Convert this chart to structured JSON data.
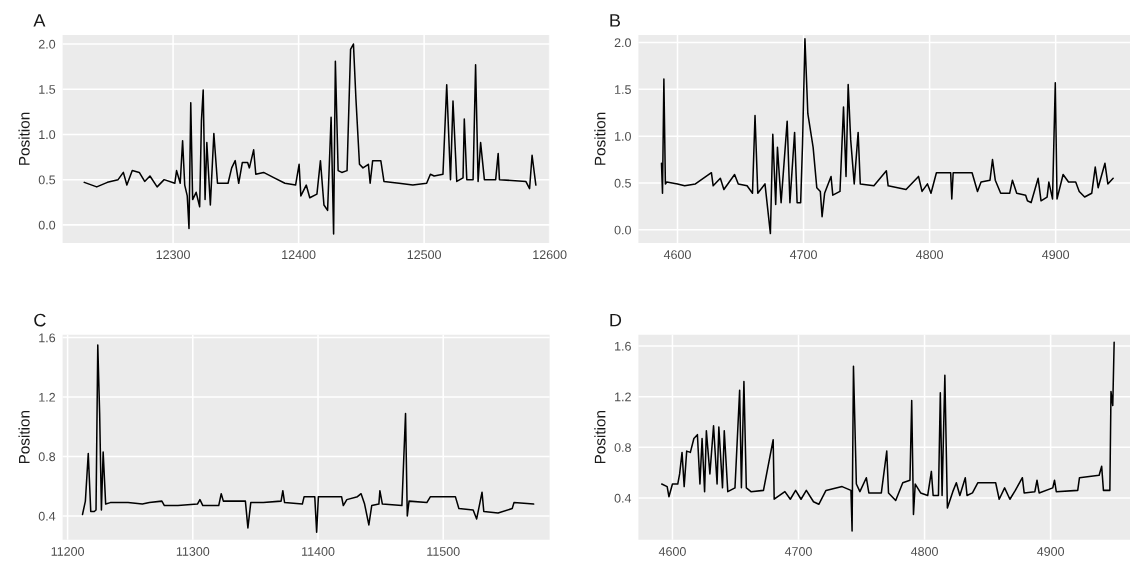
{
  "chart_data": [
    {
      "type": "line",
      "title": "A",
      "ylabel": "Position",
      "grid": true,
      "xlim": [
        12212,
        12600
      ],
      "ylim": [
        -0.2,
        2.1
      ],
      "xticks": [
        12300,
        12400,
        12500,
        12600
      ],
      "yticks": [
        {
          "value": 0,
          "label": "0.0"
        },
        {
          "value": 0.5,
          "label": "0.5"
        },
        {
          "value": 1,
          "label": "1.0"
        },
        {
          "value": 1.5,
          "label": "1.5"
        },
        {
          "value": 2,
          "label": "2.0"
        }
      ],
      "series": [
        {
          "color": "#000000",
          "x": [
            12229.3,
            12239.2,
            12247.7,
            12256.2,
            12260.4,
            12263.2,
            12267.5,
            12273.1,
            12277.4,
            12281.6,
            12287.3,
            12292.9,
            12301.4,
            12302.8,
            12305.7,
            12307.6,
            12309.3,
            12311.3,
            12312.7,
            12314.1,
            12315.6,
            12318.4,
            12321.2,
            12322.6,
            12324,
            12325.5,
            12326.9,
            12329.7,
            12332.5,
            12335.4,
            12343.8,
            12346.7,
            12349.5,
            12352.3,
            12355.2,
            12359.4,
            12360.8,
            12364.2,
            12365.9,
            12372.1,
            12380.6,
            12389.1,
            12397.6,
            12400.4,
            12401.8,
            12406.1,
            12408.9,
            12414.6,
            12417.4,
            12420.2,
            12423.1,
            12425.9,
            12427.9,
            12429.3,
            12431.5,
            12434.4,
            12438.6,
            12441.4,
            12443.7,
            12445.7,
            12448.5,
            12451.3,
            12455.6,
            12457,
            12459,
            12465.5,
            12468,
            12480,
            12491,
            12502,
            12505,
            12508,
            12515,
            12518,
            12521,
            12523,
            12526,
            12531,
            12532,
            12534,
            12539,
            12541,
            12543,
            12545,
            12548,
            12557,
            12559,
            12560,
            12581,
            12584,
            12586,
            12589
          ],
          "values": [
            0.47,
            0.42,
            0.47,
            0.5,
            0.58,
            0.44,
            0.6,
            0.58,
            0.48,
            0.54,
            0.42,
            0.5,
            0.46,
            0.6,
            0.46,
            0.93,
            0.44,
            0.32,
            -0.04,
            1.35,
            0.28,
            0.36,
            0.2,
            1.15,
            1.49,
            0.28,
            0.91,
            0.22,
            1.01,
            0.46,
            0.46,
            0.63,
            0.71,
            0.46,
            0.69,
            0.69,
            0.63,
            0.83,
            0.56,
            0.58,
            0.52,
            0.46,
            0.44,
            0.67,
            0.32,
            0.44,
            0.3,
            0.34,
            0.71,
            0.22,
            0.16,
            1.19,
            -0.1,
            1.81,
            0.6,
            0.58,
            0.6,
            1.94,
            2.0,
            1.39,
            0.67,
            0.63,
            0.67,
            0.46,
            0.71,
            0.71,
            0.48,
            0.46,
            0.44,
            0.46,
            0.56,
            0.54,
            0.56,
            1.55,
            0.5,
            1.37,
            0.48,
            0.52,
            1.17,
            0.5,
            0.5,
            1.77,
            0.48,
            0.91,
            0.5,
            0.5,
            0.79,
            0.5,
            0.48,
            0.4,
            0.77,
            0.44
          ]
        }
      ]
    },
    {
      "type": "line",
      "title": "B",
      "ylabel": "Position",
      "grid": true,
      "xlim": [
        4569,
        4959
      ],
      "ylim": [
        -0.14,
        2.08
      ],
      "xticks": [
        4600,
        4700,
        4800,
        4900
      ],
      "yticks": [
        {
          "value": 0,
          "label": "0.0"
        },
        {
          "value": 0.5,
          "label": "0.5"
        },
        {
          "value": 1,
          "label": "1.0"
        },
        {
          "value": 1.5,
          "label": "1.5"
        },
        {
          "value": 2,
          "label": "2.0"
        }
      ],
      "series": [
        {
          "color": "#000000",
          "x": [
            4587.3,
            4588.1,
            4589.2,
            4590.4,
            4591.5,
            4600,
            4605.7,
            4614.2,
            4626.9,
            4628.3,
            4634,
            4636.8,
            4645.3,
            4648.2,
            4655.2,
            4659.5,
            4661.5,
            4663.7,
            4669.4,
            4673.7,
            4675.6,
            4677.9,
            4679.3,
            4682.2,
            4687,
            4689.2,
            4692.9,
            4694.9,
            4697.7,
            4699.2,
            4701.1,
            4703.4,
            4707.6,
            4710.5,
            4713.3,
            4714.7,
            4716.7,
            4721.8,
            4723.2,
            4728.9,
            4731.7,
            4733.7,
            4735.4,
            4737.4,
            4740.2,
            4743.3,
            4745,
            4755.8,
            4765.7,
            4767.1,
            4781.3,
            4791.2,
            4794,
            4798.3,
            4801.1,
            4805.4,
            4816.7,
            4817.6,
            4818.7,
            4833.7,
            4838,
            4840.8,
            4847.9,
            4849.9,
            4852.1,
            4856.4,
            4863.5,
            4865.7,
            4869.1,
            4876.2,
            4877.6,
            4880.5,
            4886.1,
            4888.4,
            4893.2,
            4894.6,
            4897.5,
            4899.7,
            4901.1,
            4905.9,
            4910.2,
            4915.9,
            4918.7,
            4923,
            4928.6,
            4931.4,
            4933.7,
            4939.1,
            4941.4,
            4945.6
          ],
          "values": [
            0.71,
            0.39,
            1.61,
            0.49,
            0.51,
            0.49,
            0.47,
            0.49,
            0.61,
            0.47,
            0.55,
            0.43,
            0.59,
            0.49,
            0.47,
            0.39,
            1.22,
            0.39,
            0.49,
            -0.04,
            1.02,
            0.27,
            0.88,
            0.29,
            1.16,
            0.29,
            1.04,
            0.29,
            0.29,
            0.92,
            2.04,
            1.24,
            0.88,
            0.45,
            0.41,
            0.14,
            0.39,
            0.57,
            0.37,
            0.41,
            1.31,
            0.57,
            1.55,
            0.96,
            0.49,
            1.04,
            0.49,
            0.47,
            0.63,
            0.47,
            0.43,
            0.57,
            0.41,
            0.49,
            0.39,
            0.61,
            0.61,
            0.33,
            0.61,
            0.61,
            0.41,
            0.51,
            0.53,
            0.75,
            0.53,
            0.39,
            0.39,
            0.53,
            0.39,
            0.37,
            0.31,
            0.29,
            0.55,
            0.31,
            0.35,
            0.51,
            0.33,
            1.57,
            0.33,
            0.59,
            0.51,
            0.51,
            0.41,
            0.35,
            0.39,
            0.67,
            0.45,
            0.71,
            0.49,
            0.55
          ]
        }
      ]
    },
    {
      "type": "line",
      "title": "C",
      "ylabel": "Position",
      "grid": true,
      "xlim": [
        11196,
        11585
      ],
      "ylim": [
        0.24,
        1.62
      ],
      "xticks": [
        11200,
        11300,
        11400,
        11500
      ],
      "yticks": [
        0.4,
        0.8,
        1.2,
        1.6
      ],
      "series": [
        {
          "color": "#000000",
          "x": [
            11211.9,
            11214.2,
            11216.5,
            11218.5,
            11221.3,
            11222.7,
            11224.1,
            11225.6,
            11227,
            11228.4,
            11230.4,
            11234.1,
            11248.3,
            11259.7,
            11265.3,
            11275.3,
            11277.3,
            11288.1,
            11303.7,
            11305.7,
            11308,
            11320.7,
            11322.7,
            11324.4,
            11342,
            11344,
            11346.3,
            11356.3,
            11370.5,
            11371.9,
            11373.3,
            11387.5,
            11388.9,
            11397.4,
            11398.9,
            11400.3,
            11418.8,
            11420.2,
            11423,
            11431.5,
            11434.4,
            11437.2,
            11440.6,
            11442.9,
            11448.6,
            11449.4,
            11451.4,
            11467,
            11469.9,
            11471.3,
            11472.7,
            11486.9,
            11489.8,
            11509.7,
            11512.5,
            11523.9,
            11526.7,
            11531,
            11532.4,
            11543.8,
            11555.1,
            11556.5,
            11572.2
          ],
          "values": [
            0.41,
            0.5,
            0.82,
            0.43,
            0.43,
            0.44,
            1.55,
            1.09,
            0.44,
            0.83,
            0.48,
            0.49,
            0.49,
            0.48,
            0.49,
            0.5,
            0.47,
            0.47,
            0.48,
            0.51,
            0.47,
            0.47,
            0.55,
            0.5,
            0.5,
            0.32,
            0.49,
            0.49,
            0.5,
            0.57,
            0.49,
            0.48,
            0.53,
            0.53,
            0.29,
            0.53,
            0.53,
            0.47,
            0.51,
            0.53,
            0.55,
            0.48,
            0.34,
            0.47,
            0.48,
            0.57,
            0.48,
            0.47,
            1.09,
            0.4,
            0.5,
            0.49,
            0.53,
            0.53,
            0.45,
            0.44,
            0.38,
            0.56,
            0.43,
            0.42,
            0.45,
            0.49,
            0.48
          ]
        }
      ]
    },
    {
      "type": "line",
      "title": "D",
      "ylabel": "Position",
      "grid": true,
      "xlim": [
        4573,
        4963
      ],
      "ylim": [
        0.07,
        1.69
      ],
      "xticks": [
        4600,
        4700,
        4800,
        4900
      ],
      "yticks": [
        0.4,
        0.8,
        1.2,
        1.6
      ],
      "series": [
        {
          "color": "#000000",
          "x": [
            4591.5,
            4595.8,
            4597.2,
            4600,
            4604.2,
            4605.7,
            4607.6,
            4609.3,
            4611.3,
            4614.2,
            4617,
            4619.8,
            4621.8,
            4623.5,
            4625.5,
            4626.9,
            4629.7,
            4632.6,
            4635.4,
            4636.8,
            4639.7,
            4641.1,
            4643.9,
            4649.6,
            4653.3,
            4654.7,
            4656.7,
            4658.6,
            4662.3,
            4672.2,
            4679.9,
            4680.7,
            4689.2,
            4693.5,
            4697.7,
            4702,
            4706.2,
            4711.9,
            4716.1,
            4721.8,
            4734.6,
            4741.6,
            4742.5,
            4743.6,
            4745.9,
            4748.7,
            4753.8,
            4755.8,
            4765.7,
            4770,
            4771.4,
            4777.1,
            4782.7,
            4788.4,
            4789.8,
            4791.2,
            4792.6,
            4796.9,
            4802.5,
            4805.4,
            4806.8,
            4811,
            4812.5,
            4813.9,
            4816.1,
            4818.1,
            4822.4,
            4825.2,
            4828,
            4832.3,
            4833.7,
            4838,
            4842.2,
            4856.4,
            4859.2,
            4863.5,
            4867.7,
            4872,
            4877.6,
            4879,
            4887.5,
            4889.2,
            4890.9,
            4901.7,
            4903.1,
            4904.5,
            4921.5,
            4922.9,
            4938.5,
            4940.5,
            4941.9,
            4947,
            4947.9,
            4949.3,
            4950.4
          ],
          "values": [
            0.51,
            0.49,
            0.41,
            0.51,
            0.51,
            0.59,
            0.76,
            0.49,
            0.77,
            0.76,
            0.87,
            0.9,
            0.51,
            0.87,
            0.45,
            0.93,
            0.59,
            0.97,
            0.51,
            0.96,
            0.48,
            0.93,
            0.45,
            0.48,
            1.25,
            0.48,
            1.32,
            0.48,
            0.45,
            0.46,
            0.86,
            0.39,
            0.45,
            0.39,
            0.46,
            0.39,
            0.46,
            0.37,
            0.35,
            0.46,
            0.49,
            0.46,
            0.14,
            1.44,
            0.51,
            0.45,
            0.56,
            0.44,
            0.44,
            0.77,
            0.44,
            0.38,
            0.52,
            0.54,
            1.17,
            0.27,
            0.51,
            0.44,
            0.42,
            0.61,
            0.42,
            0.42,
            1.23,
            0.42,
            1.37,
            0.32,
            0.45,
            0.52,
            0.42,
            0.56,
            0.42,
            0.44,
            0.52,
            0.52,
            0.39,
            0.48,
            0.39,
            0.46,
            0.56,
            0.44,
            0.45,
            0.54,
            0.44,
            0.48,
            0.54,
            0.45,
            0.46,
            0.56,
            0.58,
            0.65,
            0.46,
            0.46,
            1.24,
            1.13,
            1.63
          ]
        }
      ]
    }
  ]
}
